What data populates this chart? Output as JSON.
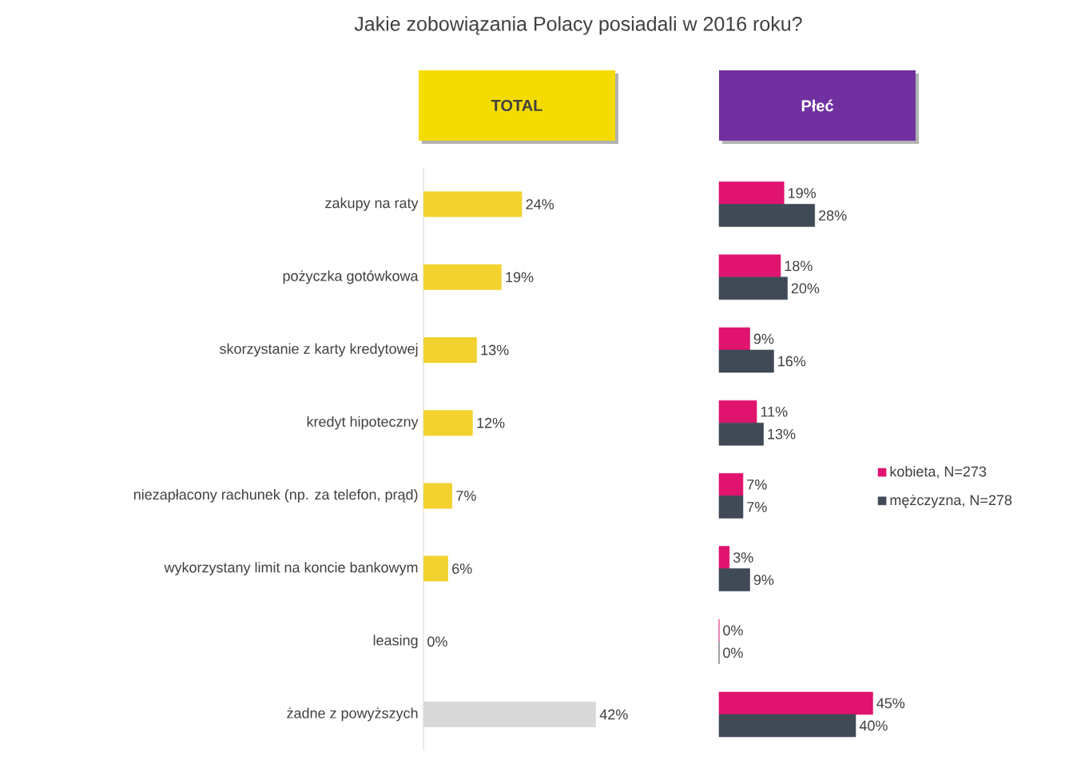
{
  "chart_data": [
    {
      "type": "bar",
      "orientation": "horizontal",
      "title": "Jakie zobowiązania Polacy posiadali w 2016 roku?",
      "subtitle": "TOTAL",
      "categories": [
        "zakupy na raty",
        "pożyczka gotówkowa",
        "skorzystanie z karty kredytowej",
        "kredyt hipoteczny",
        "niezapłacony rachunek (np. za telefon, prąd)",
        "wykorzystany limit na koncie bankowym",
        "leasing",
        "żadne z powyższych"
      ],
      "values": [
        24,
        19,
        13,
        12,
        7,
        6,
        0,
        42
      ],
      "value_labels": [
        "24%",
        "19%",
        "13%",
        "12%",
        "7%",
        "6%",
        "0%",
        "42%"
      ],
      "colors": [
        "#f2d22e",
        "#f2d22e",
        "#f2d22e",
        "#f2d22e",
        "#f2d22e",
        "#f2d22e",
        "#f2d22e",
        "#d9d9d9"
      ]
    },
    {
      "type": "bar",
      "orientation": "horizontal",
      "title": "Płeć",
      "legend": "right",
      "categories": [
        null,
        null,
        null,
        null,
        null,
        null,
        null,
        null
      ],
      "series": [
        {
          "name": "kobieta, N=273",
          "color": "#e0136f",
          "values": [
            19,
            18,
            9,
            11,
            7,
            3,
            0,
            45
          ],
          "value_labels": [
            "19%",
            "18%",
            "9%",
            "11%",
            "7%",
            "3%",
            "0%",
            "45%"
          ]
        },
        {
          "name": "mężczyzna, N=278",
          "color": "#3f4a56",
          "values": [
            28,
            20,
            16,
            13,
            7,
            9,
            0,
            40
          ],
          "value_labels": [
            "28%",
            "20%",
            "16%",
            "13%",
            "7%",
            "9%",
            "0%",
            "40%"
          ]
        }
      ]
    }
  ]
}
